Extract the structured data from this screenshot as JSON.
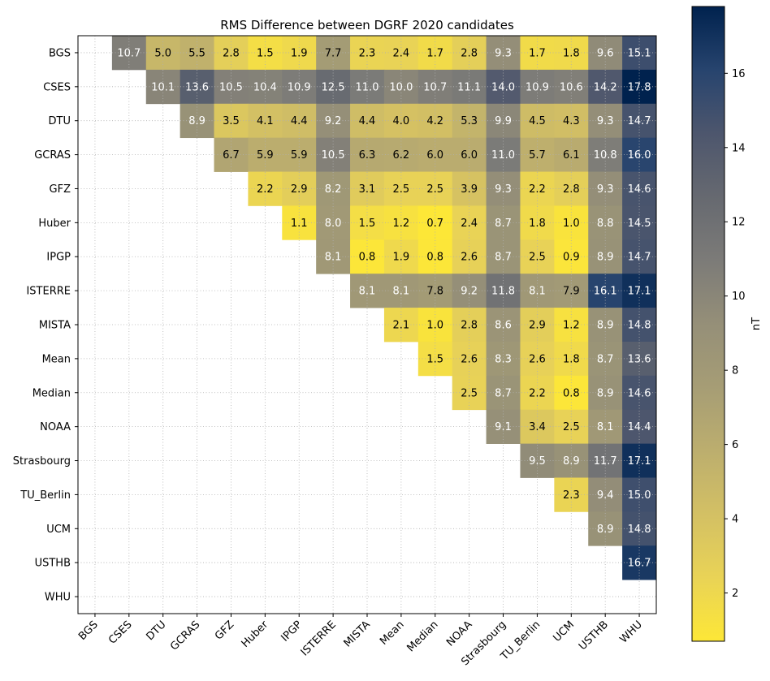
{
  "chart_data": {
    "type": "heatmap",
    "title": "RMS Difference between DGRF 2020 candidates",
    "rows": [
      "BGS",
      "CSES",
      "DTU",
      "GCRAS",
      "GFZ",
      "Huber",
      "IPGP",
      "ISTERRE",
      "MISTA",
      "Mean",
      "Median",
      "NOAA",
      "Strasbourg",
      "TU_Berlin",
      "UCM",
      "USTHB",
      "WHU"
    ],
    "columns": [
      "BGS",
      "CSES",
      "DTU",
      "GCRAS",
      "GFZ",
      "Huber",
      "IPGP",
      "ISTERRE",
      "MISTA",
      "Mean",
      "Median",
      "NOAA",
      "Strasbourg",
      "TU_Berlin",
      "UCM",
      "USTHB",
      "WHU"
    ],
    "values": [
      [
        null,
        10.7,
        5.0,
        5.5,
        2.8,
        1.5,
        1.9,
        7.7,
        2.3,
        2.4,
        1.7,
        2.8,
        9.3,
        1.7,
        1.8,
        9.6,
        15.1
      ],
      [
        null,
        null,
        10.1,
        13.6,
        10.5,
        10.4,
        10.9,
        12.5,
        11.0,
        10.0,
        10.7,
        11.1,
        14.0,
        10.9,
        10.6,
        14.2,
        17.8
      ],
      [
        null,
        null,
        null,
        8.9,
        3.5,
        4.1,
        4.4,
        9.2,
        4.4,
        4.0,
        4.2,
        5.3,
        9.9,
        4.5,
        4.3,
        9.3,
        14.7
      ],
      [
        null,
        null,
        null,
        null,
        6.7,
        5.9,
        5.9,
        10.5,
        6.3,
        6.2,
        6.0,
        6.0,
        11.0,
        5.7,
        6.1,
        10.8,
        16.0
      ],
      [
        null,
        null,
        null,
        null,
        null,
        2.2,
        2.9,
        8.2,
        3.1,
        2.5,
        2.5,
        3.9,
        9.3,
        2.2,
        2.8,
        9.3,
        14.6
      ],
      [
        null,
        null,
        null,
        null,
        null,
        null,
        1.1,
        8.0,
        1.5,
        1.2,
        0.7,
        2.4,
        8.7,
        1.8,
        1.0,
        8.8,
        14.5
      ],
      [
        null,
        null,
        null,
        null,
        null,
        null,
        null,
        8.1,
        0.8,
        1.9,
        0.8,
        2.6,
        8.7,
        2.5,
        0.9,
        8.9,
        14.7
      ],
      [
        null,
        null,
        null,
        null,
        null,
        null,
        null,
        null,
        8.1,
        8.1,
        7.8,
        9.2,
        11.8,
        8.1,
        7.9,
        16.1,
        17.1
      ],
      [
        null,
        null,
        null,
        null,
        null,
        null,
        null,
        null,
        null,
        2.1,
        1.0,
        2.8,
        8.6,
        2.9,
        1.2,
        8.9,
        14.8
      ],
      [
        null,
        null,
        null,
        null,
        null,
        null,
        null,
        null,
        null,
        null,
        1.5,
        2.6,
        8.3,
        2.6,
        1.8,
        8.7,
        13.6
      ],
      [
        null,
        null,
        null,
        null,
        null,
        null,
        null,
        null,
        null,
        null,
        null,
        2.5,
        8.7,
        2.2,
        0.8,
        8.9,
        14.6
      ],
      [
        null,
        null,
        null,
        null,
        null,
        null,
        null,
        null,
        null,
        null,
        null,
        null,
        9.1,
        3.4,
        2.5,
        8.1,
        14.4
      ],
      [
        null,
        null,
        null,
        null,
        null,
        null,
        null,
        null,
        null,
        null,
        null,
        null,
        null,
        9.5,
        8.9,
        11.7,
        17.1
      ],
      [
        null,
        null,
        null,
        null,
        null,
        null,
        null,
        null,
        null,
        null,
        null,
        null,
        null,
        null,
        2.3,
        9.4,
        15.0
      ],
      [
        null,
        null,
        null,
        null,
        null,
        null,
        null,
        null,
        null,
        null,
        null,
        null,
        null,
        null,
        null,
        8.9,
        14.8
      ],
      [
        null,
        null,
        null,
        null,
        null,
        null,
        null,
        null,
        null,
        null,
        null,
        null,
        null,
        null,
        null,
        null,
        16.7
      ],
      [
        null,
        null,
        null,
        null,
        null,
        null,
        null,
        null,
        null,
        null,
        null,
        null,
        null,
        null,
        null,
        null,
        null
      ]
    ],
    "colormap": "cividis_r",
    "vmin": 0.7,
    "vmax": 17.8,
    "colorbar": {
      "label": "nT",
      "ticks": [
        2,
        4,
        6,
        8,
        10,
        12,
        14,
        16
      ]
    },
    "grid": true
  }
}
